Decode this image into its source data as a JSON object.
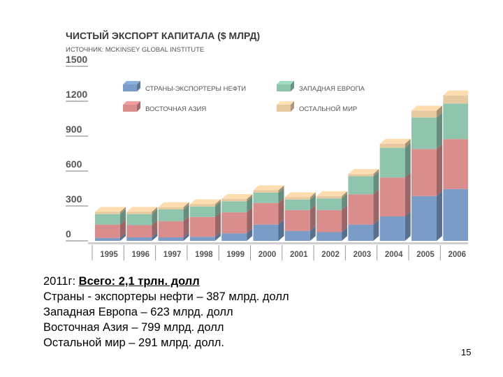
{
  "chart_data": {
    "type": "bar",
    "stacked": true,
    "style": "3d",
    "title": "ЧИСТЫЙ ЭКСПОРТ КАПИТАЛА ($ МЛРД)",
    "subtitle": "ИСТОЧНИК: MCKINSEY GLOBAL INSTITUTE",
    "xlabel": "",
    "ylabel": "",
    "ylim": [
      0,
      1500
    ],
    "yticks": [
      "1500",
      "1200",
      "900",
      "600",
      "300",
      "0"
    ],
    "categories": [
      "1995",
      "1996",
      "1997",
      "1998",
      "1999",
      "2000",
      "2001",
      "2002",
      "2003",
      "2004",
      "2005",
      "2006"
    ],
    "series": [
      {
        "name": "СТРАНЫ-ЭКСПОРТЕРЫ НЕФТИ",
        "color": "#7a9cc6",
        "values": [
          25,
          30,
          30,
          35,
          65,
          140,
          85,
          75,
          140,
          210,
          385,
          445
        ]
      },
      {
        "name": "ВОСТОЧНАЯ АЗИЯ",
        "color": "#d98d8d",
        "values": [
          115,
          105,
          140,
          170,
          180,
          185,
          180,
          190,
          260,
          335,
          405,
          430
        ]
      },
      {
        "name": "ЗАПАДНАЯ ЕВРОПА",
        "color": "#8fc4ad",
        "values": [
          90,
          95,
          100,
          90,
          95,
          90,
          90,
          100,
          155,
          255,
          270,
          305
        ]
      },
      {
        "name": "ОСТАЛЬНОЙ МИР",
        "color": "#e6c9a0",
        "values": [
          20,
          20,
          20,
          20,
          20,
          20,
          20,
          20,
          20,
          35,
          60,
          70
        ]
      }
    ],
    "legend_position": "top-center",
    "grid": false
  },
  "caption": {
    "line1_prefix": "2011г:  ",
    "line1_strong": "Всего: 2,1 трлн. долл",
    "line2": "Страны - экспортеры нефти – 387 млрд. долл",
    "line3": "Западная Европа – 623 млрд. долл",
    "line4": "Восточная Азия – 799 млрд. долл",
    "line5": "Остальной мир – 291 млрд. долл."
  },
  "page_number": "15"
}
